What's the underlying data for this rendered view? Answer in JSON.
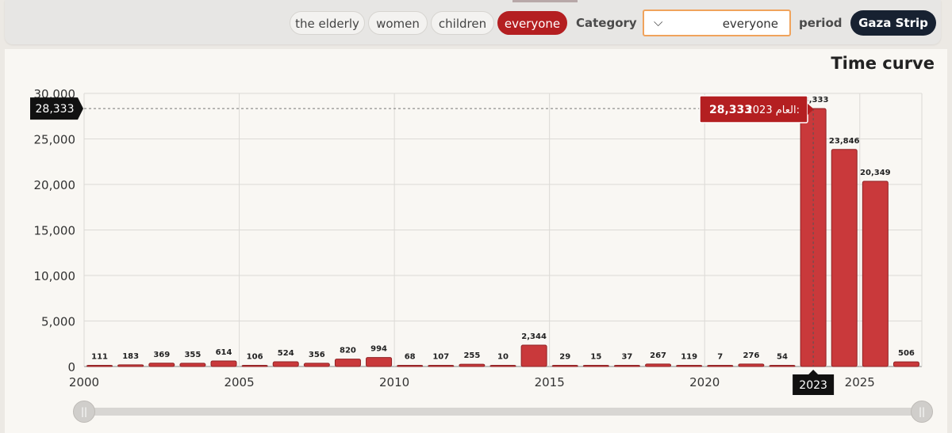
{
  "filters": {
    "chips": [
      {
        "label": "the elderly",
        "active": false
      },
      {
        "label": "women",
        "active": false
      },
      {
        "label": "children",
        "active": false
      },
      {
        "label": "everyone",
        "active": true
      }
    ],
    "category_label": "Category",
    "period_select_value": "everyone",
    "period_label": "period",
    "region_button": "Gaza Strip"
  },
  "chart_title": "Time curve",
  "tooltip": {
    "year_text": "العام 2023:",
    "value_text": "28,333"
  },
  "crosshair": {
    "value_label": "28,333",
    "year_label": "2023"
  },
  "colors": {
    "accent": "#b41f21",
    "bar": "#c9393b",
    "bar_stroke": "#8f2224",
    "dark": "#111111"
  },
  "chart_data": {
    "type": "bar",
    "title": "Time curve",
    "xlabel": "",
    "ylabel": "",
    "categories": [
      2000,
      2001,
      2002,
      2003,
      2004,
      2005,
      2006,
      2007,
      2008,
      2009,
      2010,
      2011,
      2012,
      2013,
      2014,
      2015,
      2016,
      2017,
      2018,
      2019,
      2020,
      2021,
      2022,
      2023,
      2024,
      2025,
      2026
    ],
    "values": [
      111,
      183,
      369,
      355,
      614,
      106,
      524,
      356,
      820,
      994,
      68,
      107,
      255,
      10,
      2344,
      29,
      15,
      37,
      267,
      119,
      7,
      276,
      54,
      28333,
      23846,
      20349,
      506
    ],
    "value_labels": [
      "111",
      "183",
      "369",
      "355",
      "614",
      "106",
      "524",
      "356",
      "820",
      "994",
      "68",
      "107",
      "255",
      "10",
      "2,344",
      "29",
      "15",
      "37",
      "267",
      "119",
      "7",
      "276",
      "54",
      "28,333",
      "23,846",
      "20,349",
      "506"
    ],
    "y_ticks": [
      "0",
      "5,000",
      "10,000",
      "15,000",
      "20,000",
      "25,000",
      "30,000"
    ],
    "y_tick_values": [
      0,
      5000,
      10000,
      15000,
      20000,
      25000,
      30000
    ],
    "x_ticks": [
      "2000",
      "2005",
      "2010",
      "2015",
      "2020",
      "2025"
    ],
    "x_tick_values": [
      2000,
      2005,
      2010,
      2015,
      2020,
      2025
    ],
    "ylim": [
      0,
      30000
    ],
    "xlim": [
      2000,
      2027
    ],
    "grid": true,
    "highlight_year": 2023
  }
}
